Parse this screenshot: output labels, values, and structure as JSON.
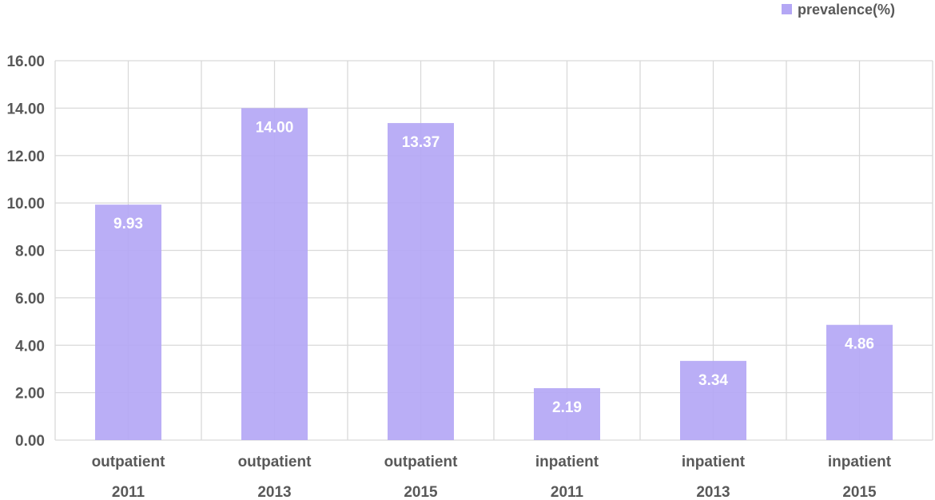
{
  "chart_data": {
    "type": "bar",
    "categories": [
      [
        "outpatient",
        "2011"
      ],
      [
        "outpatient",
        "2013"
      ],
      [
        "outpatient",
        "2015"
      ],
      [
        "inpatient",
        "2011"
      ],
      [
        "inpatient",
        "2013"
      ],
      [
        "inpatient",
        "2015"
      ]
    ],
    "series": [
      {
        "name": "prevalence(%)",
        "values": [
          9.93,
          14.0,
          13.37,
          2.19,
          3.34,
          4.86
        ],
        "data_labels": [
          "9.93",
          "14.00",
          "13.37",
          "2.19",
          "3.34",
          "4.86"
        ],
        "color": "#b4a7f5"
      }
    ],
    "ylim": [
      0,
      16
    ],
    "yticks": [
      "0.00",
      "2.00",
      "4.00",
      "6.00",
      "8.00",
      "10.00",
      "12.00",
      "14.00",
      "16.00"
    ],
    "grid": true,
    "legend": "top-right",
    "title": "",
    "xlabel": "",
    "ylabel": ""
  }
}
